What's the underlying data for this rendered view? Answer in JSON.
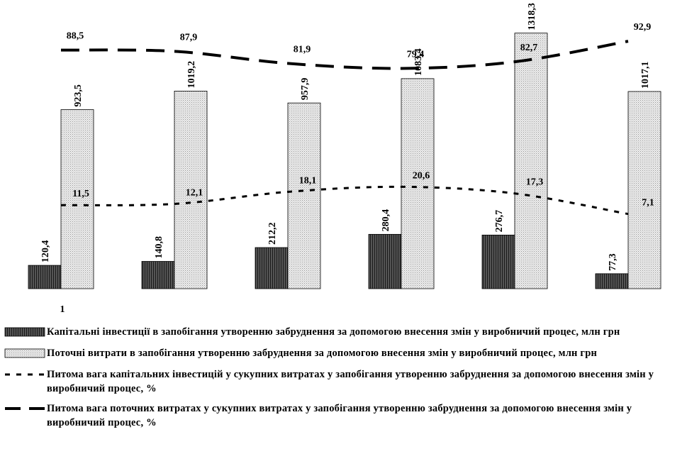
{
  "chart_data": {
    "type": "bar",
    "categories": [
      "1",
      "",
      "",
      "",
      "",
      ""
    ],
    "series": [
      {
        "name": "Капітальні інвестиції в запобігання утворенню забруднення за допомогою внесення змін у виробничий процес, млн грн",
        "kind": "bar",
        "color": "#3a3a3a",
        "values": [
          120.4,
          140.8,
          212.2,
          280.4,
          276.7,
          77.3
        ],
        "labels": [
          "120,4",
          "140,8",
          "212,2",
          "280,4",
          "276,7",
          "77,3"
        ]
      },
      {
        "name": "Поточні витрати в запобігання утворенню забруднення за допомогою внесення змін у виробничий процес, млн грн",
        "kind": "bar",
        "color": "#dcdcdc",
        "values": [
          923.5,
          1019.2,
          957.9,
          1083.4,
          1318.3,
          1017.1
        ],
        "labels": [
          "923,5",
          "1019,2",
          "957,9",
          "1083,4",
          "1318,3",
          "1017,1"
        ]
      },
      {
        "name": "Питома вага капітальних інвестицій у сукупних витратах у запобігання утворенню забруднення за допомогою внесення змін у виробничий процес, %",
        "kind": "line",
        "dash": "short",
        "values": [
          11.5,
          12.1,
          18.1,
          20.6,
          17.3,
          7.1
        ],
        "labels": [
          "11,5",
          "12,1",
          "18,1",
          "20,6",
          "17,3",
          "7,1"
        ]
      },
      {
        "name": "Питома вага поточних витратах у сукупних витратах у запобігання утворенню забруднення за допомогою внесення змін у виробничий процес, %",
        "kind": "line",
        "dash": "long",
        "values": [
          88.5,
          87.9,
          81.9,
          79.4,
          82.7,
          92.9
        ],
        "labels": [
          "88,5",
          "87,9",
          "81,9",
          "79,4",
          "82,7",
          "92,9"
        ]
      }
    ],
    "bar_ylim": [
      0,
      1350
    ],
    "line_ylim": [
      -30,
      100
    ],
    "grid": false,
    "legend_position": "bottom"
  }
}
